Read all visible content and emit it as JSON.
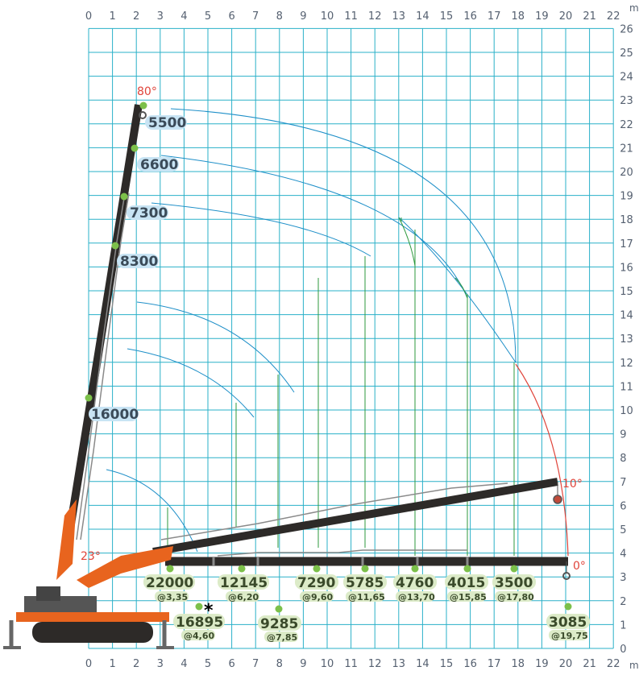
{
  "axes": {
    "x_ticks": [
      "0",
      "1",
      "2",
      "3",
      "4",
      "5",
      "6",
      "7",
      "8",
      "9",
      "10",
      "11",
      "12",
      "13",
      "14",
      "15",
      "16",
      "17",
      "18",
      "19",
      "20",
      "21",
      "22"
    ],
    "y_ticks": [
      "0",
      "1",
      "2",
      "3",
      "4",
      "5",
      "6",
      "7",
      "8",
      "9",
      "10",
      "11",
      "12",
      "13",
      "14",
      "15",
      "16",
      "17",
      "18",
      "19",
      "20",
      "21",
      "22",
      "23",
      "24",
      "25",
      "26"
    ],
    "x_unit": "m",
    "y_unit": "m"
  },
  "angles": {
    "a80": "80°",
    "a23": "23°",
    "a10": "10°",
    "a0": "0°"
  },
  "boom_capacities": [
    "5500",
    "6600",
    "7300",
    "8300",
    "16000"
  ],
  "radius_loads": [
    {
      "load": "22000",
      "radius": "@3,35"
    },
    {
      "load": "16895",
      "radius": "@4,60"
    },
    {
      "load": "12145",
      "radius": "@6,20"
    },
    {
      "load": "9285",
      "radius": "@7,85"
    },
    {
      "load": "7290",
      "radius": "@9,60"
    },
    {
      "load": "5785",
      "radius": "@11,65"
    },
    {
      "load": "4760",
      "radius": "@13,70"
    },
    {
      "load": "4015",
      "radius": "@15,85"
    },
    {
      "load": "3500",
      "radius": "@17,80"
    },
    {
      "load": "3085",
      "radius": "@19,75"
    }
  ],
  "marker": "*",
  "colors": {
    "grid": "#2ab0c8",
    "arc": "#1e8fc8",
    "boom": "#2d2a28",
    "crane_orange": "#e8641e",
    "ground_line": "#2e9a3e",
    "dot": "#7cc04a",
    "label_blue_bg": "#c8e4f4",
    "label_green_bg": "#dcebc8",
    "angle_red": "#e0443a"
  }
}
